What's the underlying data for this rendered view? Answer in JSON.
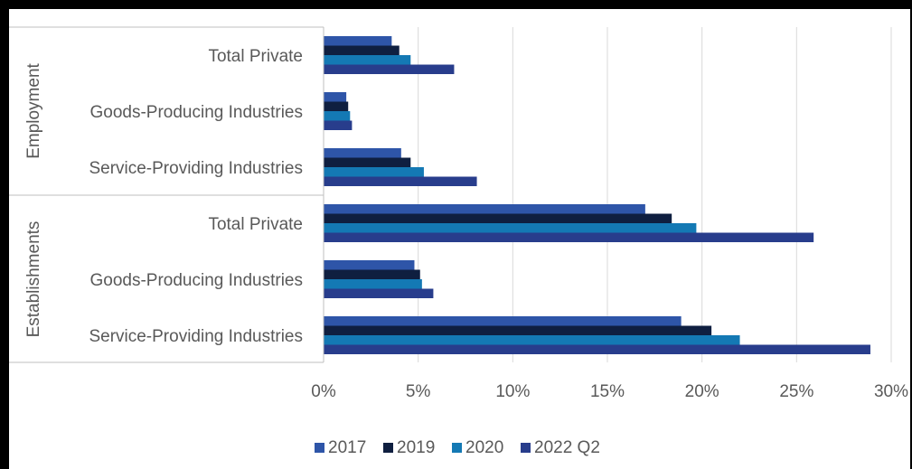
{
  "chart_data": {
    "type": "bar",
    "orientation": "horizontal",
    "title": "",
    "groups": [
      {
        "label": "Employment",
        "categories": [
          "Total Private",
          "Goods-Producing Industries",
          "Service-Providing Industries"
        ]
      },
      {
        "label": "Establishments",
        "categories": [
          "Total Private",
          "Goods-Producing Industries",
          "Service-Providing Industries"
        ]
      }
    ],
    "series": [
      {
        "name": "2017",
        "color": "#2e55a8",
        "values": [
          3.6,
          1.2,
          4.1,
          17.0,
          4.8,
          18.9
        ]
      },
      {
        "name": "2019",
        "color": "#0f1f40",
        "values": [
          4.0,
          1.3,
          4.6,
          18.4,
          5.1,
          20.5
        ]
      },
      {
        "name": "2020",
        "color": "#1479b4",
        "values": [
          4.6,
          1.4,
          5.3,
          19.7,
          5.2,
          22.0
        ]
      },
      {
        "name": "2022 Q2",
        "color": "#283d8c",
        "values": [
          6.9,
          1.5,
          8.1,
          25.9,
          5.8,
          28.9
        ]
      }
    ],
    "xlim": [
      0,
      30
    ],
    "xticks": [
      "0%",
      "5%",
      "10%",
      "15%",
      "20%",
      "25%",
      "30%"
    ],
    "grid": true,
    "legend_position": "bottom"
  }
}
